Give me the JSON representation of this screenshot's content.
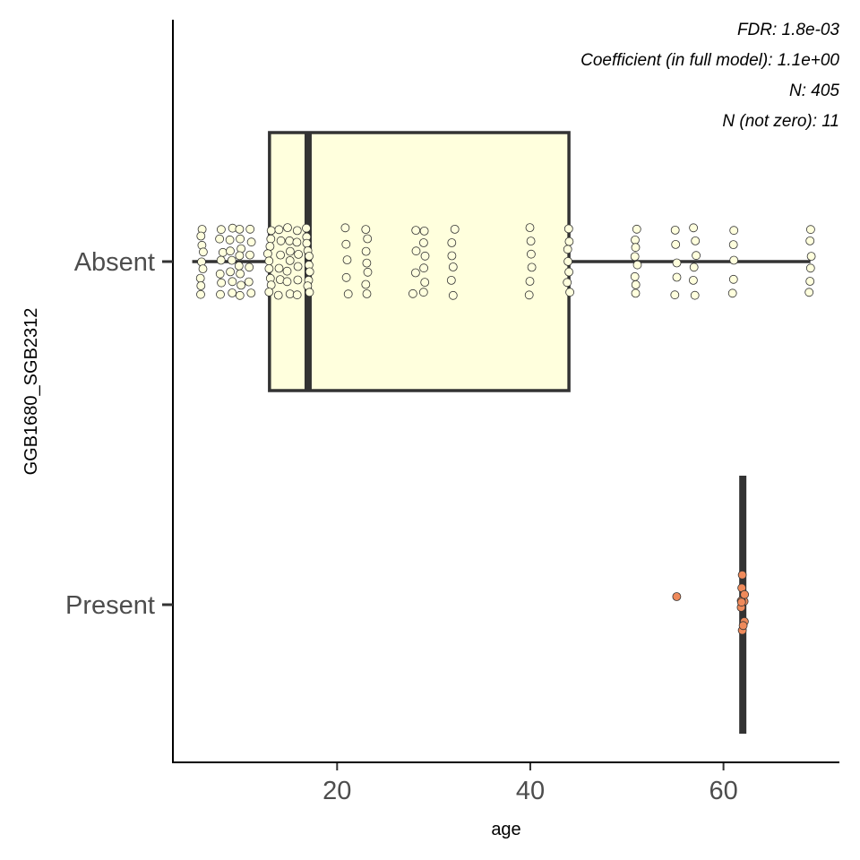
{
  "chart_data": {
    "type": "boxplot",
    "xlabel": "age",
    "ylabel": "GGB1680_SGB2312",
    "xlim": [
      3,
      72
    ],
    "x_ticks": [
      20,
      40,
      60
    ],
    "categories": [
      "Absent",
      "Present"
    ],
    "annotations": [
      "FDR: 1.8e-03",
      "Coefficient (in full model): 1.1e+00",
      "N: 405",
      "N (not zero): 11"
    ],
    "colors": {
      "Absent": "#ffffdd",
      "Present": "#ef8a5b",
      "box_line": "#333333"
    },
    "boxes": [
      {
        "category": "Absent",
        "whisker_low": 5,
        "q1": 13,
        "median": 17,
        "q3": 44,
        "whisker_high": 69
      },
      {
        "category": "Present",
        "whisker_low": 62,
        "q1": 62,
        "median": 62,
        "q3": 62,
        "whisker_high": 62
      }
    ],
    "points": [
      {
        "category": "Absent",
        "ages": [
          6,
          6,
          6,
          6,
          6,
          6,
          6,
          6,
          6,
          8,
          8,
          8,
          8,
          8,
          8,
          8,
          9,
          9,
          9,
          9,
          9,
          9,
          9,
          10,
          10,
          10,
          10,
          10,
          10,
          10,
          10,
          11,
          11,
          11,
          11,
          11,
          11,
          13,
          13,
          13,
          13,
          13,
          13,
          13,
          13,
          13,
          14,
          14,
          14,
          14,
          14,
          14,
          15,
          15,
          15,
          15,
          15,
          15,
          15,
          16,
          16,
          16,
          16,
          16,
          16,
          17,
          17,
          17,
          17,
          17,
          17,
          17,
          17,
          17,
          17,
          21,
          21,
          21,
          21,
          21,
          23,
          23,
          23,
          23,
          23,
          23,
          23,
          28,
          28,
          28,
          28,
          29,
          29,
          29,
          29,
          29,
          29,
          32,
          32,
          32,
          32,
          32,
          32,
          40,
          40,
          40,
          40,
          40,
          40,
          44,
          44,
          44,
          44,
          44,
          44,
          44,
          51,
          51,
          51,
          51,
          51,
          51,
          51,
          51,
          55,
          55,
          55,
          55,
          55,
          57,
          57,
          57,
          57,
          57,
          57,
          61,
          61,
          61,
          61,
          61,
          69,
          69,
          69,
          69,
          69,
          69
        ]
      },
      {
        "category": "Present",
        "ages": [
          55,
          62,
          62,
          62,
          62,
          62,
          62,
          62,
          62,
          62,
          62
        ]
      }
    ]
  }
}
